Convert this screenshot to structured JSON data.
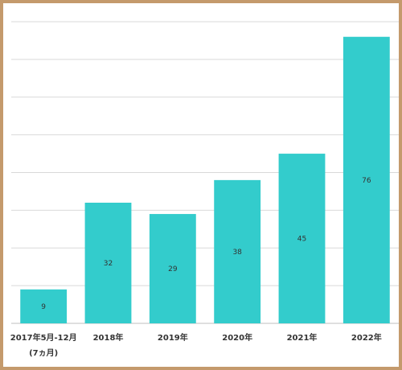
{
  "chart_data": {
    "type": "bar",
    "categories": [
      [
        "2017年5月-12月",
        "(7ヵ月)"
      ],
      [
        "2018年"
      ],
      [
        "2019年"
      ],
      [
        "2020年"
      ],
      [
        "2021年"
      ],
      [
        "2022年"
      ]
    ],
    "values": [
      9,
      32,
      29,
      38,
      45,
      76
    ],
    "title": "",
    "xlabel": "",
    "ylabel": "",
    "ylim": [
      0,
      80
    ],
    "grid": true,
    "legend": "none",
    "colors": {
      "bar": "#33cccc",
      "grid": "#d9d9d9",
      "axis": "#bfbfbf",
      "frame": "#c49a6c"
    }
  }
}
